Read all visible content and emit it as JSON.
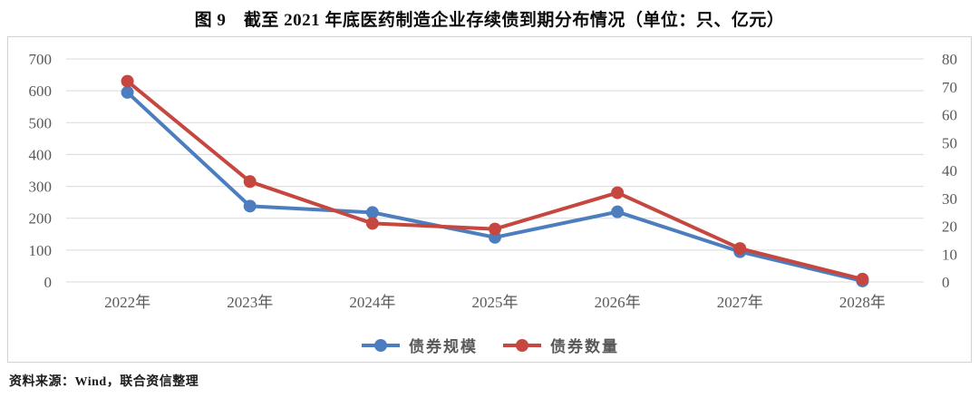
{
  "page": {
    "title": "图 9　截至 2021 年底医药制造企业存续债到期分布情况（单位：只、亿元）",
    "source_note": "资料来源：Wind，联合资信整理"
  },
  "chart_data": {
    "type": "line",
    "categories": [
      "2022年",
      "2023年",
      "2024年",
      "2025年",
      "2026年",
      "2027年",
      "2028年"
    ],
    "series": [
      {
        "name": "债券规模",
        "axis": "left",
        "color": "#4C7EBF",
        "values": [
          595,
          238,
          218,
          140,
          220,
          95,
          3
        ]
      },
      {
        "name": "债券数量",
        "axis": "right",
        "color": "#C5473F",
        "values": [
          72,
          36,
          21,
          19,
          32,
          12,
          1
        ]
      }
    ],
    "left_axis": {
      "min": 0,
      "max": 700,
      "step": 100,
      "tick_labels": [
        "0",
        "100",
        "200",
        "300",
        "400",
        "500",
        "600",
        "700"
      ]
    },
    "right_axis": {
      "min": 0,
      "max": 80,
      "step": 10,
      "tick_labels": [
        "0",
        "10",
        "20",
        "30",
        "40",
        "50",
        "60",
        "70",
        "80"
      ]
    },
    "grid": true,
    "gridline_color": "#dadada",
    "axis_label_color": "#595959",
    "legend_position": "bottom"
  }
}
